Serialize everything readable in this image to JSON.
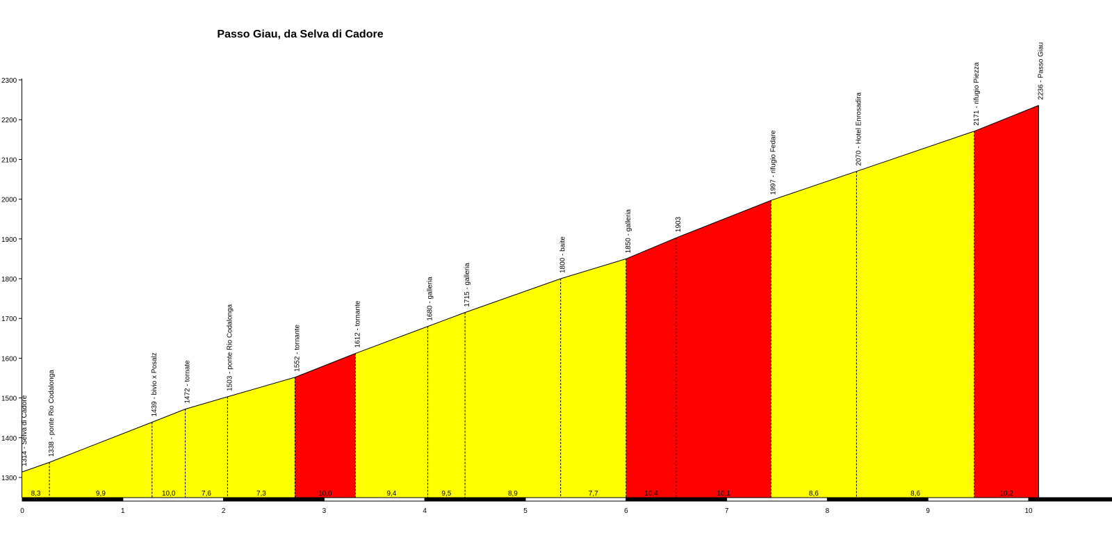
{
  "chart_data": {
    "type": "area",
    "title": "Passo Giau, da Selva di Cadore",
    "xlabel": "",
    "ylabel": "",
    "xlim": [
      0,
      10.9
    ],
    "ylim": [
      1245,
      2300
    ],
    "x_ticks": [
      "0",
      "1",
      "2",
      "3",
      "4",
      "5",
      "6",
      "7",
      "8",
      "9",
      "10"
    ],
    "y_ticks": [
      "1300",
      "1400",
      "1500",
      "1600",
      "1700",
      "1800",
      "1900",
      "2000",
      "2100",
      "2200",
      "2300"
    ],
    "colors": {
      "moderate": "#ffff00",
      "steep": "#ff0000",
      "outline": "#000000"
    },
    "points": [
      {
        "x": 0.0,
        "y": 1314,
        "label": "1314 - Selva di Cadore"
      },
      {
        "x": 0.27,
        "y": 1338,
        "label": "1338 - ponte Rio Codalonga"
      },
      {
        "x": 1.29,
        "y": 1439,
        "label": "1439 - bivio x Posalz"
      },
      {
        "x": 1.62,
        "y": 1472,
        "label": "1472 - tornate"
      },
      {
        "x": 2.04,
        "y": 1503,
        "label": "1503 - ponte Rio Codalonga"
      },
      {
        "x": 2.71,
        "y": 1552,
        "label": "1552 - tornante"
      },
      {
        "x": 3.31,
        "y": 1612,
        "label": "1612 - tornante"
      },
      {
        "x": 4.03,
        "y": 1680,
        "label": "1680 - galleria"
      },
      {
        "x": 4.4,
        "y": 1715,
        "label": "1715 - galleria"
      },
      {
        "x": 5.35,
        "y": 1800,
        "label": "1800 - baite"
      },
      {
        "x": 6.0,
        "y": 1850,
        "label": "1850 - galleria"
      },
      {
        "x": 6.5,
        "y": 1903,
        "label": "1903"
      },
      {
        "x": 7.44,
        "y": 1997,
        "label": "1997 - rifugio Fedare"
      },
      {
        "x": 8.29,
        "y": 2070,
        "label": "2070 - Hotel Enrosadira"
      },
      {
        "x": 9.46,
        "y": 2171,
        "label": "2171 - rifugio Piezza"
      },
      {
        "x": 10.1,
        "y": 2236,
        "label": "2236 - Passo Giau"
      }
    ],
    "segments": [
      {
        "from": 0,
        "to": 1,
        "gradient": "8,3",
        "color": "moderate"
      },
      {
        "from": 1,
        "to": 2,
        "gradient": "9,9",
        "color": "moderate"
      },
      {
        "from": 2,
        "to": 3,
        "gradient": "10,0",
        "color": "moderate"
      },
      {
        "from": 3,
        "to": 4,
        "gradient": "7,6",
        "color": "moderate"
      },
      {
        "from": 4,
        "to": 5,
        "gradient": "7,3",
        "color": "moderate"
      },
      {
        "from": 5,
        "to": 6,
        "gradient": "10,0",
        "color": "steep"
      },
      {
        "from": 6,
        "to": 7,
        "gradient": "9,4",
        "color": "moderate"
      },
      {
        "from": 7,
        "to": 8,
        "gradient": "9,5",
        "color": "moderate"
      },
      {
        "from": 8,
        "to": 9,
        "gradient": "8,9",
        "color": "moderate"
      },
      {
        "from": 9,
        "to": 10,
        "gradient": "7,7",
        "color": "moderate"
      },
      {
        "from": 10,
        "to": 11,
        "gradient": "10,4",
        "color": "steep"
      },
      {
        "from": 11,
        "to": 12,
        "gradient": "10,1",
        "color": "steep"
      },
      {
        "from": 12,
        "to": 13,
        "gradient": "8,6",
        "color": "moderate"
      },
      {
        "from": 13,
        "to": 14,
        "gradient": "8,6",
        "color": "moderate"
      },
      {
        "from": 14,
        "to": 15,
        "gradient": "10,2",
        "color": "steep"
      }
    ]
  }
}
